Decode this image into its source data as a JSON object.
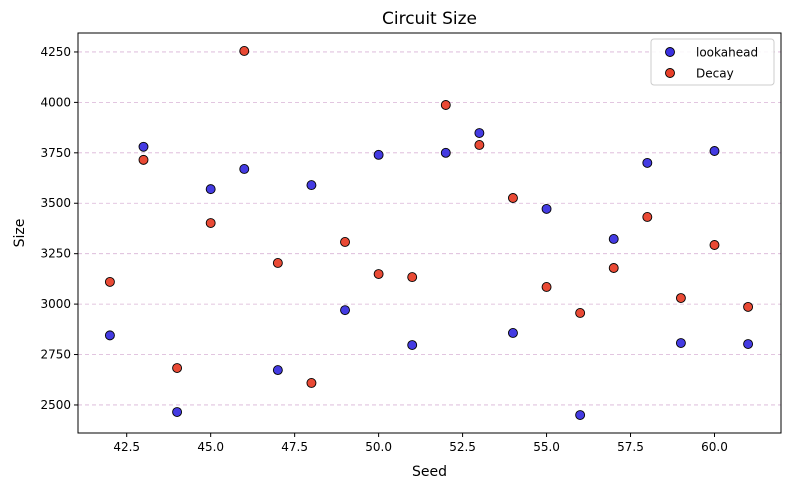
{
  "chart_data": {
    "type": "scatter",
    "title": "Circuit Size",
    "xlabel": "Seed",
    "ylabel": "Size",
    "xlim": [
      41.05,
      61.98
    ],
    "ylim": [
      2361,
      4344
    ],
    "xticks": [
      42.5,
      45.0,
      47.5,
      50.0,
      52.5,
      55.0,
      57.5,
      60.0
    ],
    "xtick_labels": [
      "42.5",
      "45.0",
      "47.5",
      "50.0",
      "52.5",
      "55.0",
      "57.5",
      "60.0"
    ],
    "yticks": [
      2500,
      2750,
      3000,
      3250,
      3500,
      3750,
      4000,
      4250
    ],
    "ytick_labels": [
      "2500",
      "2750",
      "3000",
      "3250",
      "3500",
      "3750",
      "4000",
      "4250"
    ],
    "grid": "horizontal dashed",
    "legend_position": "top-right",
    "x": [
      42,
      43,
      44,
      45,
      46,
      47,
      48,
      49,
      50,
      51,
      52,
      53,
      54,
      55,
      56,
      57,
      58,
      59,
      60,
      61
    ],
    "series": [
      {
        "name": "lookahead",
        "color": "#3a30e0",
        "values": [
          2845,
          3780,
          2465,
          3570,
          3670,
          2673,
          3590,
          2970,
          3740,
          2797,
          3750,
          3848,
          2857,
          3472,
          2450,
          3323,
          3700,
          2807,
          3759,
          2802
        ]
      },
      {
        "name": "Decay",
        "color": "#e8402a",
        "values": [
          3110,
          3715,
          2683,
          3402,
          4255,
          3204,
          2609,
          3308,
          3149,
          3134,
          3987,
          3789,
          3526,
          3085,
          2956,
          3179,
          3432,
          3030,
          3293,
          2986
        ]
      }
    ]
  }
}
